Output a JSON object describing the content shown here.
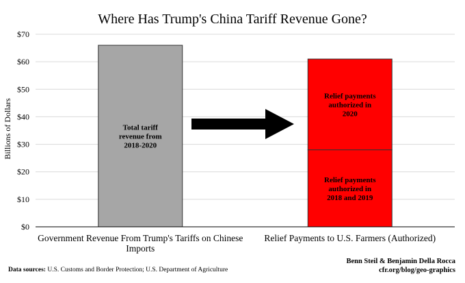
{
  "chart_data": {
    "type": "bar",
    "title": "Where Has Trump's China Tariff Revenue Gone?",
    "ylabel": "Billions of Dollars",
    "xlabel": "",
    "ylim": [
      0,
      70
    ],
    "ytick_step": 10,
    "ytick_labels": [
      "$0",
      "$10",
      "$20",
      "$30",
      "$40",
      "$50",
      "$60",
      "$70"
    ],
    "categories": [
      [
        "Government Revenue From Trump's Tariffs on Chinese",
        "Imports"
      ],
      [
        "Relief Payments to U.S. Farmers (Authorized)"
      ]
    ],
    "bars": [
      {
        "category_index": 0,
        "segments": [
          {
            "value": 66,
            "color": "#a6a6a6",
            "label": [
              "Total tariff",
              "revenue from",
              "2018-2020"
            ]
          }
        ]
      },
      {
        "category_index": 1,
        "segments": [
          {
            "value": 28,
            "color": "#ff0000",
            "label": [
              "Relief payments",
              "authorized in",
              "2018 and 2019"
            ]
          },
          {
            "value": 33,
            "color": "#ff0000",
            "label": [
              "Relief payments",
              "authorized in",
              "2020"
            ]
          }
        ]
      }
    ],
    "arrow": "right",
    "grid": true,
    "legend": "none"
  },
  "footer": {
    "sources_label": "Data sources:",
    "sources_text": " U.S. Customs and Border Protection; U.S. Department of Agriculture",
    "credit_line1": "Benn Steil & Benjamin Della Rocca",
    "credit_line2": "cfr.org/blog/geo-graphics"
  }
}
